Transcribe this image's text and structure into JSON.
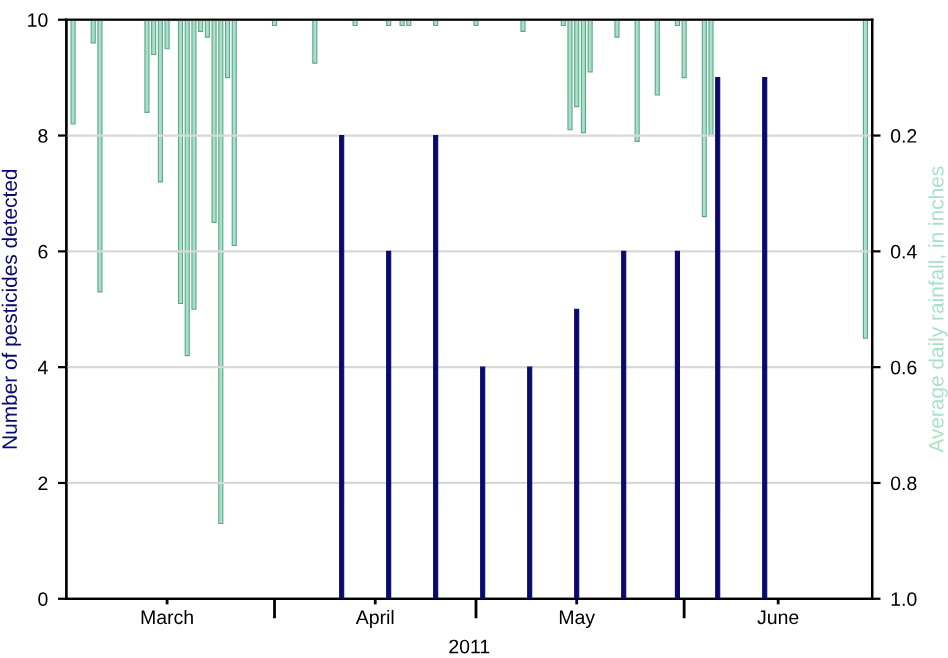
{
  "chart_data": {
    "type": "bar",
    "xlabel": "2011",
    "ylabel": "Number of pesticides detected",
    "y2label": "Average daily rainfall, in inches",
    "xlim": [
      "2011-03-01",
      "2011-06-29"
    ],
    "xticks": [
      {
        "value": "2011-03-16",
        "label": "March"
      },
      {
        "value": "2011-04-01",
        "label": null
      },
      {
        "value": "2011-04-16",
        "label": "April"
      },
      {
        "value": "2011-05-01",
        "label": null
      },
      {
        "value": "2011-05-16",
        "label": "May"
      },
      {
        "value": "2011-06-01",
        "label": null
      },
      {
        "value": "2011-06-15",
        "label": "June"
      }
    ],
    "ylim": [
      0,
      10
    ],
    "yticks": [
      0,
      2,
      4,
      6,
      8,
      10
    ],
    "y2lim": [
      1.0,
      0
    ],
    "y2ticks": [
      0.2,
      0.4,
      0.6,
      0.8,
      {
        "value": 1.0,
        "label": "1.0"
      }
    ],
    "grid": "y",
    "series": [
      {
        "color": "#0a0a6e",
        "x": [
          "2011-04-11",
          "2011-04-18",
          "2011-04-25",
          "2011-05-02",
          "2011-05-09",
          "2011-05-16",
          "2011-05-23",
          "2011-05-31",
          "2011-06-06",
          "2011-06-13"
        ],
        "values": [
          8,
          6,
          8,
          4,
          4,
          5,
          6,
          6,
          9,
          9
        ]
      },
      {
        "axis": "y2",
        "color": "#a8e0c8",
        "x": [
          "2011-03-02",
          "2011-03-05",
          "2011-03-06",
          "2011-03-13",
          "2011-03-14",
          "2011-03-15",
          "2011-03-16",
          "2011-03-18",
          "2011-03-19",
          "2011-03-20",
          "2011-03-21",
          "2011-03-22",
          "2011-03-23",
          "2011-03-24",
          "2011-03-25",
          "2011-03-26",
          "2011-04-01",
          "2011-04-07",
          "2011-04-13",
          "2011-04-18",
          "2011-04-20",
          "2011-04-21",
          "2011-04-25",
          "2011-05-01",
          "2011-05-08",
          "2011-05-14",
          "2011-05-15",
          "2011-05-16",
          "2011-05-17",
          "2011-05-18",
          "2011-05-22",
          "2011-05-25",
          "2011-05-28",
          "2011-05-31",
          "2011-06-01",
          "2011-06-04",
          "2011-06-05",
          "2011-06-28"
        ],
        "values": [
          0.18,
          0.04,
          0.47,
          0.16,
          0.06,
          0.28,
          0.05,
          0.49,
          0.58,
          0.5,
          0.02,
          0.03,
          0.35,
          0.87,
          0.1,
          0.39,
          0.01,
          0.075,
          0.01,
          0.01,
          0.01,
          0.01,
          0.01,
          0.01,
          0.02,
          0.01,
          0.19,
          0.15,
          0.195,
          0.09,
          0.03,
          0.21,
          0.13,
          0.01,
          0.1,
          0.34,
          0.2,
          0.55
        ]
      }
    ]
  }
}
